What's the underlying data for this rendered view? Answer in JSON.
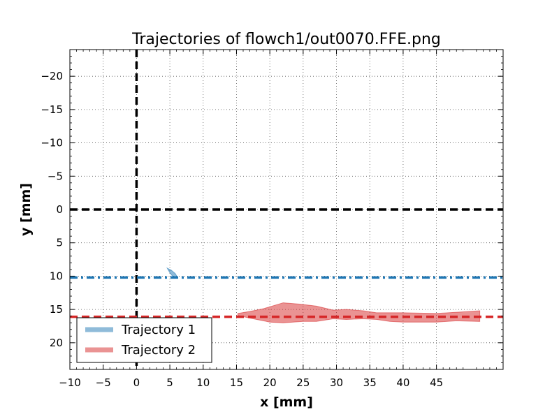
{
  "chart_data": {
    "type": "area",
    "title": "Trajectories of flowch1/out0070.FFE.png",
    "xlabel": "x [mm]",
    "ylabel": "y [mm]",
    "xlim": [
      -10,
      55
    ],
    "ylim": [
      24,
      -24
    ],
    "y_inverted": true,
    "x_ticks": [
      -10,
      -5,
      0,
      5,
      10,
      15,
      20,
      25,
      30,
      35,
      40,
      45
    ],
    "x_tick_labels": [
      "−10",
      "−5",
      "0",
      "5",
      "10",
      "15",
      "20",
      "25",
      "30",
      "35",
      "40",
      "45"
    ],
    "y_ticks": [
      -20,
      -15,
      -10,
      -5,
      0,
      5,
      10,
      15,
      20
    ],
    "y_tick_labels": [
      "−20",
      "−15",
      "−10",
      "−5",
      "0",
      "5",
      "10",
      "15",
      "20"
    ],
    "grid": true,
    "legend_position": "lower-left",
    "reference_lines": [
      {
        "orientation": "vertical",
        "x": 0,
        "style": "dashed",
        "color": "#000000"
      },
      {
        "orientation": "horizontal",
        "y": 0,
        "style": "dashed",
        "color": "#000000"
      }
    ],
    "series": [
      {
        "name": "Trajectory 1",
        "color": "#1f77b4",
        "mean_y": 10.2,
        "mean_style": "dashdot",
        "upper": [
          [
            4.6,
            8.8
          ],
          [
            5.2,
            9.1
          ],
          [
            5.8,
            9.6
          ],
          [
            6.1,
            10.1
          ]
        ],
        "lower": [
          [
            4.6,
            8.8
          ],
          [
            5.0,
            9.5
          ],
          [
            5.4,
            10.0
          ],
          [
            6.1,
            10.1
          ]
        ]
      },
      {
        "name": "Trajectory 2",
        "color": "#d62728",
        "mean_y": 16.1,
        "mean_style": "dashed",
        "upper": [
          [
            15.2,
            15.6
          ],
          [
            17.0,
            15.3
          ],
          [
            19.0,
            14.9
          ],
          [
            22.0,
            14.0
          ],
          [
            24.5,
            14.2
          ],
          [
            27.0,
            14.5
          ],
          [
            29.5,
            15.1
          ],
          [
            31.5,
            15.0
          ],
          [
            34.0,
            15.2
          ],
          [
            36.0,
            15.5
          ],
          [
            40.0,
            15.5
          ],
          [
            45.0,
            15.6
          ],
          [
            50.0,
            15.3
          ],
          [
            51.5,
            15.2
          ]
        ],
        "lower": [
          [
            15.2,
            15.9
          ],
          [
            17.0,
            16.3
          ],
          [
            20.0,
            16.9
          ],
          [
            22.0,
            17.0
          ],
          [
            25.0,
            16.8
          ],
          [
            27.0,
            16.8
          ],
          [
            29.5,
            16.4
          ],
          [
            31.5,
            16.5
          ],
          [
            34.0,
            16.4
          ],
          [
            36.0,
            16.5
          ],
          [
            38.0,
            16.8
          ],
          [
            40.0,
            16.9
          ],
          [
            45.0,
            16.9
          ],
          [
            48.0,
            16.7
          ],
          [
            51.5,
            16.8
          ]
        ]
      }
    ]
  }
}
